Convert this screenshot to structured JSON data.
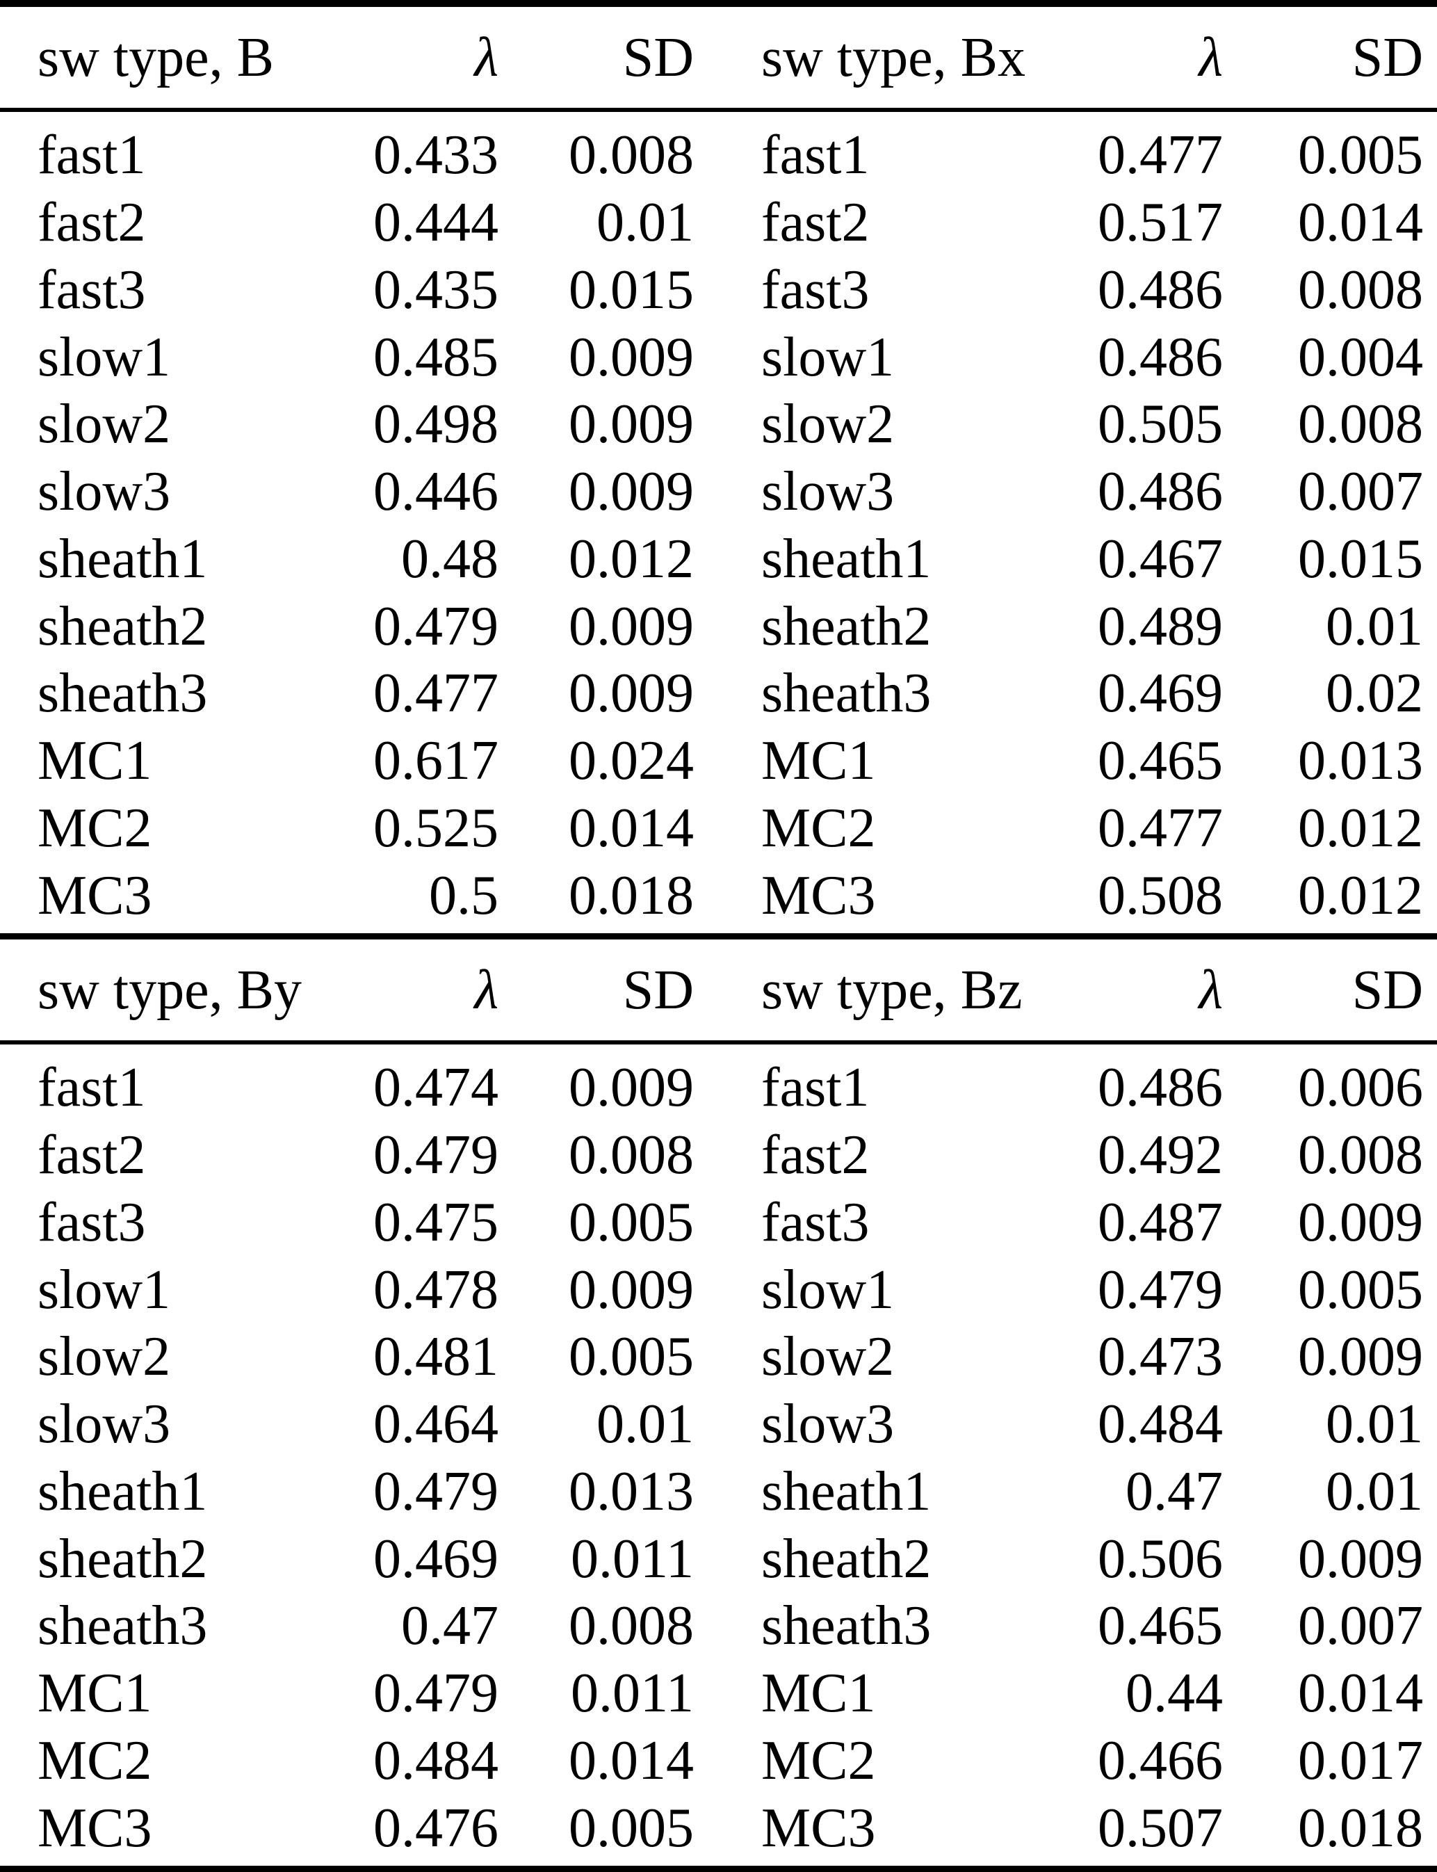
{
  "page": {
    "background_color": "#ffffff",
    "text_color": "#000000",
    "rule_color": "#000000"
  },
  "columns": [
    "sw type",
    "λ",
    "SD"
  ],
  "tables": [
    {
      "id": "B",
      "header": {
        "type": "sw type, B",
        "lambda": "λ",
        "sd": "SD"
      },
      "rows": [
        [
          "fast1",
          "0.433",
          "0.008"
        ],
        [
          "fast2",
          "0.444",
          "0.01"
        ],
        [
          "fast3",
          "0.435",
          "0.015"
        ],
        [
          "slow1",
          "0.485",
          "0.009"
        ],
        [
          "slow2",
          "0.498",
          "0.009"
        ],
        [
          "slow3",
          "0.446",
          "0.009"
        ],
        [
          "sheath1",
          "0.48",
          "0.012"
        ],
        [
          "sheath2",
          "0.479",
          "0.009"
        ],
        [
          "sheath3",
          "0.477",
          "0.009"
        ],
        [
          "MC1",
          "0.617",
          "0.024"
        ],
        [
          "MC2",
          "0.525",
          "0.014"
        ],
        [
          "MC3",
          "0.5",
          "0.018"
        ]
      ]
    },
    {
      "id": "Bx",
      "header": {
        "type": "sw type, Bx",
        "lambda": "λ",
        "sd": "SD"
      },
      "rows": [
        [
          "fast1",
          "0.477",
          "0.005"
        ],
        [
          "fast2",
          "0.517",
          "0.014"
        ],
        [
          "fast3",
          "0.486",
          "0.008"
        ],
        [
          "slow1",
          "0.486",
          "0.004"
        ],
        [
          "slow2",
          "0.505",
          "0.008"
        ],
        [
          "slow3",
          "0.486",
          "0.007"
        ],
        [
          "sheath1",
          "0.467",
          "0.015"
        ],
        [
          "sheath2",
          "0.489",
          "0.01"
        ],
        [
          "sheath3",
          "0.469",
          "0.02"
        ],
        [
          "MC1",
          "0.465",
          "0.013"
        ],
        [
          "MC2",
          "0.477",
          "0.012"
        ],
        [
          "MC3",
          "0.508",
          "0.012"
        ]
      ]
    },
    {
      "id": "By",
      "header": {
        "type": "sw type, By",
        "lambda": "λ",
        "sd": "SD"
      },
      "rows": [
        [
          "fast1",
          "0.474",
          "0.009"
        ],
        [
          "fast2",
          "0.479",
          "0.008"
        ],
        [
          "fast3",
          "0.475",
          "0.005"
        ],
        [
          "slow1",
          "0.478",
          "0.009"
        ],
        [
          "slow2",
          "0.481",
          "0.005"
        ],
        [
          "slow3",
          "0.464",
          "0.01"
        ],
        [
          "sheath1",
          "0.479",
          "0.013"
        ],
        [
          "sheath2",
          "0.469",
          "0.011"
        ],
        [
          "sheath3",
          "0.47",
          "0.008"
        ],
        [
          "MC1",
          "0.479",
          "0.011"
        ],
        [
          "MC2",
          "0.484",
          "0.014"
        ],
        [
          "MC3",
          "0.476",
          "0.005"
        ]
      ]
    },
    {
      "id": "Bz",
      "header": {
        "type": "sw type, Bz",
        "lambda": "λ",
        "sd": "SD"
      },
      "rows": [
        [
          "fast1",
          "0.486",
          "0.006"
        ],
        [
          "fast2",
          "0.492",
          "0.008"
        ],
        [
          "fast3",
          "0.487",
          "0.009"
        ],
        [
          "slow1",
          "0.479",
          "0.005"
        ],
        [
          "slow2",
          "0.473",
          "0.009"
        ],
        [
          "slow3",
          "0.484",
          "0.01"
        ],
        [
          "sheath1",
          "0.47",
          "0.01"
        ],
        [
          "sheath2",
          "0.506",
          "0.009"
        ],
        [
          "sheath3",
          "0.465",
          "0.007"
        ],
        [
          "MC1",
          "0.44",
          "0.014"
        ],
        [
          "MC2",
          "0.466",
          "0.017"
        ],
        [
          "MC3",
          "0.507",
          "0.018"
        ]
      ]
    }
  ]
}
